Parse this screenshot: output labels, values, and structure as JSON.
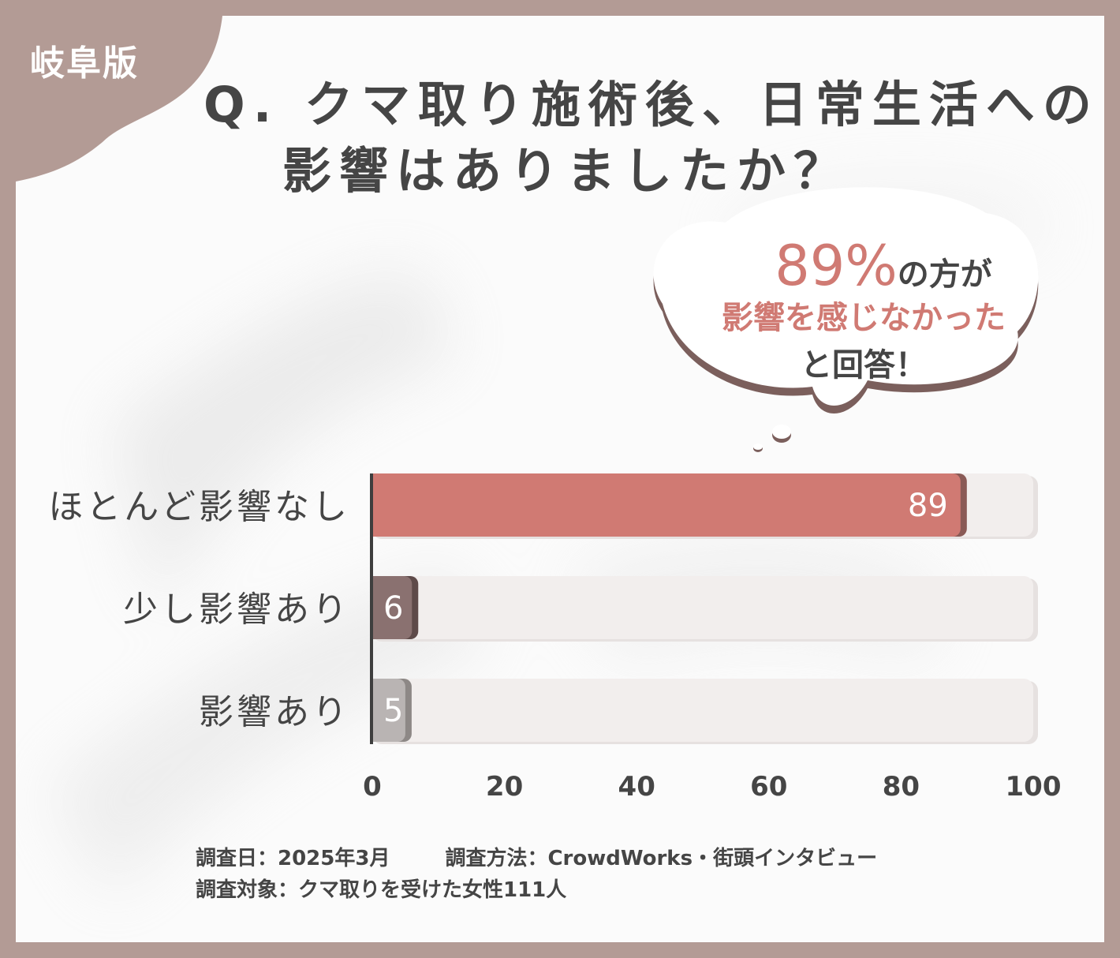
{
  "region_badge": "岐阜版",
  "title": {
    "line1": "Q. クマ取り施術後、日常生活への",
    "line2": "影響はありましたか？"
  },
  "callout": {
    "percent": "89%",
    "line1_suffix": "の方が",
    "line2": "影響を感じなかった",
    "line3": "と回答！"
  },
  "colors": {
    "frame": "#b39b95",
    "accent": "#d07a73",
    "bar_dark": "#8a7170",
    "bar_gray": "#b9b4b3",
    "track": "#f2eeed",
    "text": "#454545"
  },
  "chart_data": {
    "type": "bar",
    "orientation": "horizontal",
    "categories": [
      "ほとんど影響なし",
      "少し影響あり",
      "影響あり"
    ],
    "values": [
      89,
      6,
      5
    ],
    "value_labels": [
      "89",
      "6",
      "5"
    ],
    "xlim": [
      0,
      100
    ],
    "x_ticks": [
      0,
      20,
      40,
      60,
      80,
      100
    ],
    "x_tick_labels": [
      "0",
      "20",
      "40",
      "60",
      "80",
      "100"
    ],
    "grid": false,
    "legend": "none"
  },
  "footnotes": {
    "date": "調査日：2025年3月",
    "method": "調査方法：CrowdWorks・街頭インタビュー",
    "target": "調査対象：クマ取りを受けた女性111人"
  }
}
